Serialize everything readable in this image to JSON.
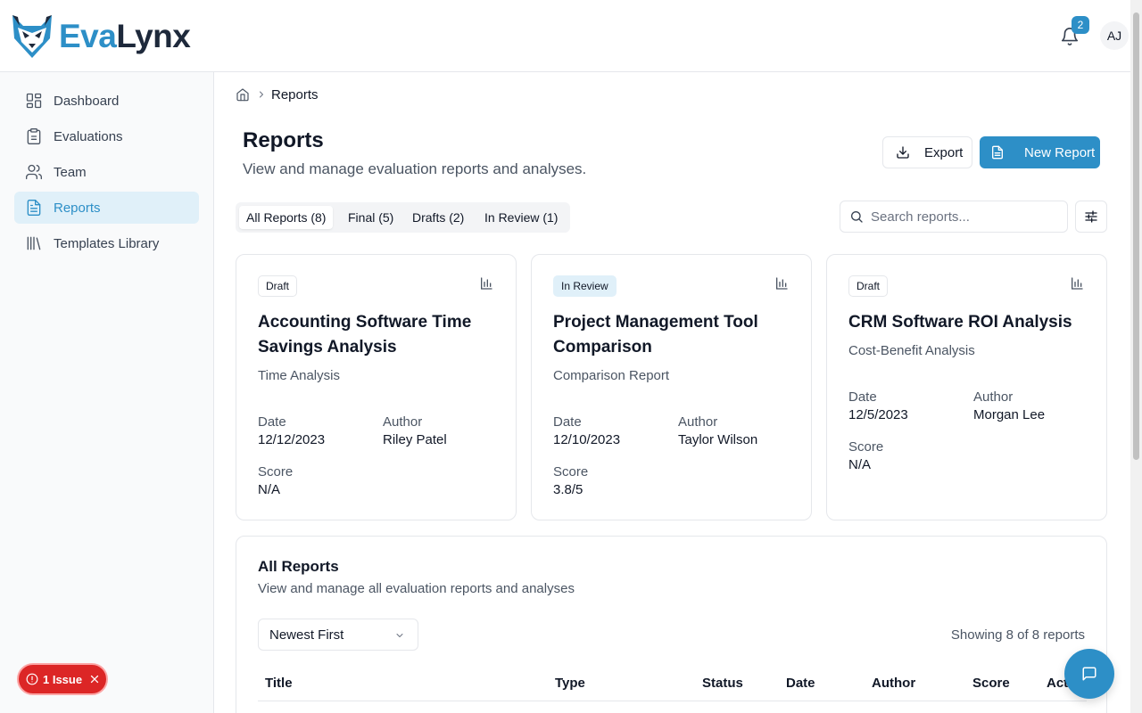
{
  "brand": {
    "name_part1": "Eva",
    "name_part2": "Lynx",
    "accent": "#2d8fc7"
  },
  "header": {
    "notification_count": "2",
    "avatar_initials": "AJ"
  },
  "sidebar": {
    "items": [
      {
        "label": "Dashboard",
        "icon": "layout-grid-icon",
        "active": false
      },
      {
        "label": "Evaluations",
        "icon": "clipboard-icon",
        "active": false
      },
      {
        "label": "Team",
        "icon": "users-icon",
        "active": false
      },
      {
        "label": "Reports",
        "icon": "file-text-icon",
        "active": true
      },
      {
        "label": "Templates Library",
        "icon": "library-icon",
        "active": false
      }
    ]
  },
  "issue": {
    "label": "1 Issue"
  },
  "breadcrumb": {
    "current": "Reports"
  },
  "page": {
    "title": "Reports",
    "subtitle": "View and manage evaluation reports and analyses.",
    "export_label": "Export",
    "new_report_label": "New Report"
  },
  "tabs": [
    {
      "label": "All Reports (8)",
      "active": true
    },
    {
      "label": "Final (5)",
      "active": false
    },
    {
      "label": "Drafts (2)",
      "active": false
    },
    {
      "label": "In Review (1)",
      "active": false
    }
  ],
  "search": {
    "placeholder": "Search reports..."
  },
  "cards": [
    {
      "status": "Draft",
      "title": "Accounting Software Time Savings Analysis",
      "type": "Time Analysis",
      "date_label": "Date",
      "date": "12/12/2023",
      "author_label": "Author",
      "author": "Riley Patel",
      "score_label": "Score",
      "score": "N/A"
    },
    {
      "status": "In Review",
      "title": "Project Management Tool Comparison",
      "type": "Comparison Report",
      "date_label": "Date",
      "date": "12/10/2023",
      "author_label": "Author",
      "author": "Taylor Wilson",
      "score_label": "Score",
      "score": "3.8/5"
    },
    {
      "status": "Draft",
      "title": "CRM Software ROI Analysis",
      "type": "Cost-Benefit Analysis",
      "date_label": "Date",
      "date": "12/5/2023",
      "author_label": "Author",
      "author": "Morgan Lee",
      "score_label": "Score",
      "score": "N/A"
    }
  ],
  "all_reports": {
    "title": "All Reports",
    "subtitle": "View and manage all evaluation reports and analyses",
    "sort_value": "Newest First",
    "showing": "Showing 8 of 8 reports",
    "columns": [
      "Title",
      "Type",
      "Status",
      "Date",
      "Author",
      "Score",
      "Action"
    ]
  }
}
